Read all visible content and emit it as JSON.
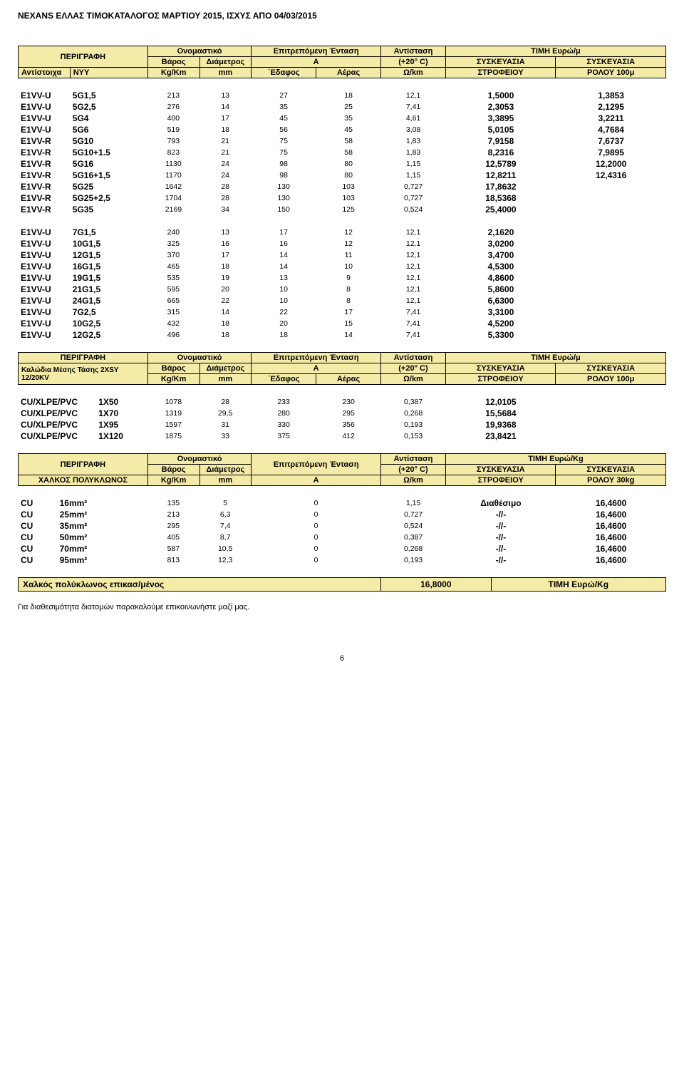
{
  "colors": {
    "header_bg": "#f5eba8",
    "border": "#000000",
    "text": "#000000",
    "page_bg": "#ffffff"
  },
  "typography": {
    "base_fontsize_pt": 8,
    "bold_weight": 700,
    "family": "Arial"
  },
  "page_header": "NEXANS ΕΛΛΑΣ ΤΙΜΟΚΑΤΑΛΟΓΟΣ ΜΑΡΤΙΟΥ 2015, ΙΣΧΥΣ ΑΠΟ 04/03/2015",
  "page_number": "6",
  "footer_note": "Για διαθεσιμότητα διατομών παρακαλούμε επικοινωνήστε μαζί μας.",
  "table1": {
    "header": {
      "c1": "ΠΕΡΙΓΡΑΦΗ",
      "c2a": "Ονομαστικό",
      "c2b": "Βάρος",
      "c2c": "Διάμετρος",
      "c3": "Επιτρεπόμενη Ένταση",
      "c3b": "A",
      "c4": "Αντίσταση",
      "c4b": "(+20° C)",
      "c5": "ΤΙΜΗ Ευρώ/μ",
      "c6": "ΣΥΣΚΕΥΑΣΙΑ",
      "c7": "ΣΥΣΚΕΥΑΣΙΑ",
      "r3a": "Αντίστοιχα",
      "r3b": "NYY",
      "r3c": "Kg/Km",
      "r3d": "mm",
      "r3e": "΄Εδαφος",
      "r3f": "Αέρας",
      "r3g": "Ω/km",
      "r3h": "ΣΤΡΟΦΕΙΟΥ",
      "r3i": "ΡΟΛΟΥ 100μ"
    },
    "block1": [
      [
        "E1VV-U",
        "5G1,5",
        "213",
        "13",
        "27",
        "18",
        "12,1",
        "1,5000",
        "1,3853"
      ],
      [
        "E1VV-U",
        "5G2,5",
        "276",
        "14",
        "35",
        "25",
        "7,41",
        "2,3053",
        "2,1295"
      ],
      [
        "E1VV-U",
        "5G4",
        "400",
        "17",
        "45",
        "35",
        "4,61",
        "3,3895",
        "3,2211"
      ],
      [
        "E1VV-U",
        "5G6",
        "519",
        "18",
        "56",
        "45",
        "3,08",
        "5,0105",
        "4,7684"
      ],
      [
        "E1VV-R",
        "5G10",
        "793",
        "21",
        "75",
        "58",
        "1,83",
        "7,9158",
        "7,6737"
      ],
      [
        "E1VV-R",
        "5G10+1.5",
        "823",
        "21",
        "75",
        "58",
        "1,83",
        "8,2316",
        "7,9895"
      ],
      [
        "E1VV-R",
        "5G16",
        "1130",
        "24",
        "98",
        "80",
        "1,15",
        "12,5789",
        "12,2000"
      ],
      [
        "E1VV-R",
        "5G16+1,5",
        "1170",
        "24",
        "98",
        "80",
        "1,15",
        "12,8211",
        "12,4316"
      ],
      [
        "E1VV-R",
        "5G25",
        "1642",
        "28",
        "130",
        "103",
        "0,727",
        "17,8632",
        ""
      ],
      [
        "E1VV-R",
        "5G25+2,5",
        "1704",
        "28",
        "130",
        "103",
        "0,727",
        "18,5368",
        ""
      ],
      [
        "E1VV-R",
        "5G35",
        "2169",
        "34",
        "150",
        "125",
        "0,524",
        "25,4000",
        ""
      ]
    ],
    "block2": [
      [
        "E1VV-U",
        "7G1,5",
        "240",
        "13",
        "17",
        "12",
        "12,1",
        "2,1620",
        ""
      ],
      [
        "E1VV-U",
        "10G1,5",
        "325",
        "16",
        "16",
        "12",
        "12,1",
        "3,0200",
        ""
      ],
      [
        "E1VV-U",
        "12G1,5",
        "370",
        "17",
        "14",
        "11",
        "12,1",
        "3,4700",
        ""
      ],
      [
        "E1VV-U",
        "16G1,5",
        "465",
        "18",
        "14",
        "10",
        "12,1",
        "4,5300",
        ""
      ],
      [
        "E1VV-U",
        "19G1,5",
        "535",
        "19",
        "13",
        "9",
        "12,1",
        "4,8600",
        ""
      ],
      [
        "E1VV-U",
        "21G1,5",
        "595",
        "20",
        "10",
        "8",
        "12,1",
        "5,8600",
        ""
      ],
      [
        "E1VV-U",
        "24G1,5",
        "665",
        "22",
        "10",
        "8",
        "12,1",
        "6,6300",
        ""
      ],
      [
        "E1VV-U",
        "7G2,5",
        "315",
        "14",
        "22",
        "17",
        "7,41",
        "3,3100",
        ""
      ],
      [
        "E1VV-U",
        "10G2,5",
        "432",
        "18",
        "20",
        "15",
        "7,41",
        "4,5200",
        ""
      ],
      [
        "E1VV-U",
        "12G2,5",
        "496",
        "18",
        "18",
        "14",
        "7,41",
        "5,3300",
        ""
      ]
    ]
  },
  "table2": {
    "header": {
      "c1": "ΠΕΡΙΓΡΑΦΗ",
      "sub": "Καλώδια Μέσης Τάσης 2XSY 12/20KV",
      "c2a": "Ονομαστικό",
      "c2b": "Βάρος",
      "c2c": "Διάμετρος",
      "c3": "Επιτρεπόμενη Ένταση",
      "c3b": "A",
      "c4": "Αντίσταση",
      "c4b": "(+20° C)",
      "c5": "ΤΙΜΗ Ευρώ/μ",
      "c6": "ΣΥΣΚΕΥΑΣΙΑ",
      "c7": "ΣΥΣΚΕΥΑΣΙΑ",
      "r3c": "Kg/Km",
      "r3d": "mm",
      "r3e": "΄Εδαφος",
      "r3f": "Αέρας",
      "r3g": "Ω/km",
      "r3h": "ΣΤΡΟΦΕΙΟΥ",
      "r3i": "ΡΟΛΟΥ 100μ"
    },
    "rows": [
      [
        "CU/XLPE/PVC",
        "1X50",
        "1078",
        "28",
        "233",
        "230",
        "0,387",
        "12,0105",
        ""
      ],
      [
        "CU/XLPE/PVC",
        "1X70",
        "1319",
        "29,5",
        "280",
        "295",
        "0,268",
        "15,5684",
        ""
      ],
      [
        "CU/XLPE/PVC",
        "1X95",
        "1597",
        "31",
        "330",
        "356",
        "0,193",
        "19,9368",
        ""
      ],
      [
        "CU/XLPE/PVC",
        "1X120",
        "1875",
        "33",
        "375",
        "412",
        "0,153",
        "23,8421",
        ""
      ]
    ]
  },
  "table3": {
    "header": {
      "c1": "ΠΕΡΙΓΡΑΦΗ",
      "sub": "ΧΑΛΚΟΣ ΠΟΛΥΚΛΩΝΟΣ",
      "c2a": "Ονομαστικό",
      "c2b": "Βάρος",
      "c2c": "Διάμετρος",
      "c3": "Επιτρεπόμενη Ένταση",
      "c3b": "A",
      "c4": "Αντίσταση",
      "c4b": "(+20° C)",
      "c5": "ΤΙΜΗ Ευρώ/Kg",
      "c6": "ΣΥΣΚΕΥΑΣΙΑ",
      "c7": "ΣΥΣΚΕΥΑΣΙΑ",
      "r3c": "Kg/Km",
      "r3d": "mm",
      "r3g": "Ω/km",
      "r3h": "ΣΤΡΟΦΕΙΟΥ",
      "r3i": "ΡΟΛΟΥ 30kg"
    },
    "rows": [
      [
        "CU",
        "16mm²",
        "135",
        "5",
        "0",
        "1,15",
        "Διαθέσιμο",
        "16,4600"
      ],
      [
        "CU",
        "25mm²",
        "213",
        "6,3",
        "0",
        "0,727",
        "-//-",
        "16,4600"
      ],
      [
        "CU",
        "35mm²",
        "295",
        "7,4",
        "0",
        "0,524",
        "-//-",
        "16,4600"
      ],
      [
        "CU",
        "50mm²",
        "405",
        "8,7",
        "0",
        "0,387",
        "-//-",
        "16,4600"
      ],
      [
        "CU",
        "70mm²",
        "587",
        "10,5",
        "0",
        "0,268",
        "-//-",
        "16,4600"
      ],
      [
        "CU",
        "95mm²",
        "813",
        "12,3",
        "0",
        "0,193",
        "-//-",
        "16,4600"
      ]
    ]
  },
  "summary": {
    "label": "Χαλκός πολύκλωνος επικασ/μένος",
    "val": "16,8000",
    "unit": "ΤΙΜΗ Ευρώ/Kg"
  }
}
